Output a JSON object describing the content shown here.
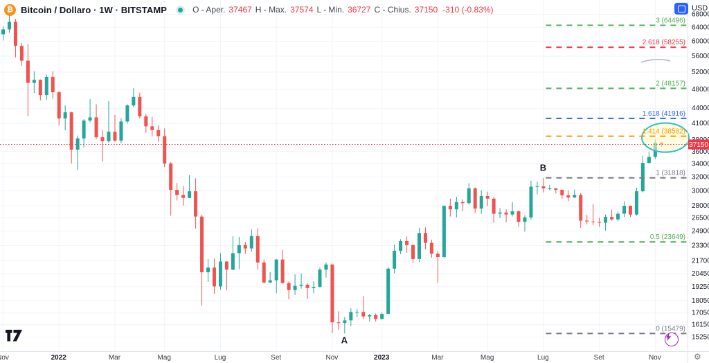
{
  "header": {
    "logo_glyph": "₿",
    "title": "Bitcoin / Dollaro · 1W · BITSTAMP",
    "ohlc": {
      "open_label": "O - Aper.",
      "open": "37467",
      "high_label": "H - Max.",
      "high": "37574",
      "low_label": "L - Min.",
      "low": "36727",
      "close_label": "C - Chius.",
      "close": "37150",
      "change": "-310 (-0.83%)"
    }
  },
  "top_right": {
    "currency": "USD"
  },
  "icons": {
    "chevron_down": "▾",
    "gear": "⚙"
  },
  "colors": {
    "up": "#26a69a",
    "down": "#ef5350",
    "grid": "#f0f3fa",
    "axis_border": "#e0e3eb",
    "axis_text": "#131722",
    "price_badge": "#f23645",
    "last_price_line": "#f23645",
    "ellipse_stroke": "#2bbfc9",
    "ellipse_fill": "#fff9c4",
    "annotation_text": "#131722",
    "brush": "#b2b5be"
  },
  "chart_data": {
    "type": "candlestick",
    "title": "Bitcoin / Dollaro weekly candlestick chart with Fibonacci extension levels",
    "timeframe": "1W",
    "exchange": "BITSTAMP",
    "scale": "logarithmic",
    "y_axis": {
      "currency": "USD",
      "ticks": [
        68000,
        64000,
        60000,
        56000,
        52000,
        48000,
        44000,
        41000,
        38000,
        36000,
        34000,
        32000,
        30000,
        28000,
        26500,
        24900,
        23300,
        21700,
        20450,
        19250,
        18050,
        17050,
        16150,
        15250
      ]
    },
    "x_axis": {
      "ticks": [
        {
          "label": "Nov",
          "index": 0,
          "is_year": false
        },
        {
          "label": "2022",
          "index": 9,
          "is_year": true
        },
        {
          "label": "Mar",
          "index": 18,
          "is_year": false
        },
        {
          "label": "Mag",
          "index": 26,
          "is_year": false
        },
        {
          "label": "Lug",
          "index": 35,
          "is_year": false
        },
        {
          "label": "Set",
          "index": 44,
          "is_year": false
        },
        {
          "label": "Nov",
          "index": 53,
          "is_year": false
        },
        {
          "label": "2023",
          "index": 61,
          "is_year": true
        },
        {
          "label": "Mar",
          "index": 70,
          "is_year": false
        },
        {
          "label": "Mag",
          "index": 78,
          "is_year": false
        },
        {
          "label": "Lug",
          "index": 87,
          "is_year": false
        },
        {
          "label": "Set",
          "index": 96,
          "is_year": false
        },
        {
          "label": "Nov",
          "index": 105,
          "is_year": false
        }
      ]
    },
    "candles_ohlc": [
      [
        61850,
        64270,
        60100,
        63290
      ],
      [
        63290,
        69000,
        62280,
        65520
      ],
      [
        65520,
        66400,
        55600,
        58620
      ],
      [
        58620,
        59450,
        53500,
        54750
      ],
      [
        54750,
        59100,
        42330,
        49400
      ],
      [
        49400,
        52100,
        47100,
        50100
      ],
      [
        50100,
        50200,
        45550,
        46700
      ],
      [
        46700,
        51375,
        45650,
        50800
      ],
      [
        50800,
        52100,
        45900,
        47300
      ],
      [
        47300,
        47600,
        40550,
        41900
      ],
      [
        41900,
        44500,
        39650,
        43100
      ],
      [
        43100,
        43200,
        34000,
        36250
      ],
      [
        36250,
        38700,
        32950,
        38200
      ],
      [
        38200,
        41750,
        36650,
        41500
      ],
      [
        41500,
        45850,
        41150,
        42100
      ],
      [
        42100,
        44750,
        38050,
        38400
      ],
      [
        38400,
        39700,
        34300,
        37700
      ],
      [
        37700,
        45400,
        37450,
        39400
      ],
      [
        39400,
        42600,
        37600,
        37800
      ],
      [
        37800,
        41950,
        37350,
        41300
      ],
      [
        41300,
        44750,
        40900,
        44500
      ],
      [
        44500,
        48200,
        44200,
        46300
      ],
      [
        46300,
        47200,
        41900,
        42300
      ],
      [
        42300,
        42800,
        39200,
        40400
      ],
      [
        40400,
        42200,
        38550,
        39700
      ],
      [
        39700,
        40600,
        37600,
        38600
      ],
      [
        38600,
        40000,
        33450,
        34000
      ],
      [
        34000,
        34250,
        26700,
        30100
      ],
      [
        30100,
        31050,
        28650,
        29400
      ],
      [
        29400,
        30650,
        28000,
        29000
      ],
      [
        29000,
        32200,
        28950,
        29900
      ],
      [
        29900,
        31750,
        25150,
        26600
      ],
      [
        26600,
        26800,
        17600,
        20550
      ],
      [
        20550,
        21850,
        19650,
        21000
      ],
      [
        21000,
        21900,
        18600,
        19250
      ],
      [
        19250,
        22450,
        18950,
        21600
      ],
      [
        21600,
        21650,
        18900,
        20800
      ],
      [
        20800,
        24300,
        20750,
        22450
      ],
      [
        22450,
        24200,
        20850,
        23300
      ],
      [
        23300,
        23650,
        22400,
        22950
      ],
      [
        22950,
        25050,
        22600,
        24300
      ],
      [
        24300,
        25200,
        20800,
        21500
      ],
      [
        21500,
        21800,
        19500,
        19600
      ],
      [
        19600,
        20550,
        19550,
        19800
      ],
      [
        19800,
        21850,
        18650,
        21800
      ],
      [
        21800,
        22800,
        19500,
        19550
      ],
      [
        19550,
        19700,
        18125,
        18925
      ],
      [
        18925,
        20350,
        18500,
        19300
      ],
      [
        19300,
        20450,
        19050,
        19400
      ],
      [
        19400,
        19550,
        18150,
        19100
      ],
      [
        19100,
        19700,
        18650,
        19200
      ],
      [
        19200,
        21000,
        19150,
        20800
      ],
      [
        20800,
        21500,
        20050,
        21300
      ],
      [
        21300,
        21350,
        15500,
        16300
      ],
      [
        16300,
        17150,
        15750,
        16250
      ],
      [
        16250,
        16700,
        15479,
        16450
      ],
      [
        16450,
        17400,
        16000,
        17100
      ],
      [
        17100,
        17350,
        16700,
        17100
      ],
      [
        17100,
        18400,
        16550,
        16750
      ],
      [
        16750,
        16950,
        16350,
        16850
      ],
      [
        16850,
        16980,
        16350,
        16550
      ],
      [
        16550,
        17050,
        16500,
        16950
      ],
      [
        16950,
        21050,
        16930,
        20900
      ],
      [
        20900,
        23350,
        20450,
        22700
      ],
      [
        22700,
        23950,
        22350,
        23750
      ],
      [
        23750,
        24250,
        22500,
        23300
      ],
      [
        23300,
        23450,
        21450,
        21850
      ],
      [
        21850,
        25250,
        21550,
        24650
      ],
      [
        24650,
        25300,
        22850,
        23550
      ],
      [
        23550,
        23900,
        22000,
        22400
      ],
      [
        22400,
        22650,
        19550,
        22050
      ],
      [
        22050,
        28000,
        21950,
        27950
      ],
      [
        27950,
        28900,
        26600,
        27500
      ],
      [
        27500,
        29150,
        26500,
        28450
      ],
      [
        28450,
        28800,
        27250,
        28300
      ],
      [
        28300,
        31050,
        28100,
        30300
      ],
      [
        30300,
        30450,
        27050,
        27600
      ],
      [
        27600,
        30050,
        26950,
        29250
      ],
      [
        29250,
        29850,
        27950,
        28900
      ],
      [
        28900,
        29150,
        25850,
        26950
      ],
      [
        26950,
        27650,
        26400,
        27100
      ],
      [
        27100,
        27500,
        25900,
        26850
      ],
      [
        26850,
        28450,
        26600,
        27250
      ],
      [
        27250,
        27400,
        25350,
        25950
      ],
      [
        25950,
        26750,
        24800,
        26500
      ],
      [
        26500,
        31400,
        26250,
        30550
      ],
      [
        30550,
        31250,
        29500,
        30600
      ],
      [
        30600,
        31818,
        29750,
        30300
      ],
      [
        30300,
        30800,
        30050,
        30300
      ],
      [
        30300,
        30350,
        29600,
        30100
      ],
      [
        30100,
        30150,
        28900,
        29350
      ],
      [
        29350,
        30050,
        28550,
        29050
      ],
      [
        29050,
        30150,
        29000,
        29400
      ],
      [
        29400,
        29650,
        25250,
        26100
      ],
      [
        26100,
        26800,
        25650,
        26000
      ],
      [
        26000,
        28150,
        25550,
        25950
      ],
      [
        25950,
        26450,
        25350,
        25850
      ],
      [
        25850,
        26850,
        24900,
        26550
      ],
      [
        26550,
        27450,
        26100,
        26250
      ],
      [
        26250,
        27250,
        26000,
        26950
      ],
      [
        26950,
        28550,
        26550,
        27950
      ],
      [
        27950,
        27990,
        26550,
        26850
      ],
      [
        26850,
        30400,
        26700,
        29900
      ],
      [
        29900,
        35250,
        29750,
        34100
      ],
      [
        34100,
        35950,
        34000,
        35050
      ],
      [
        35050,
        38000,
        34750,
        37460
      ],
      [
        37467,
        37574,
        36727,
        37150
      ]
    ],
    "last_price": {
      "value": 37150,
      "direction": "down"
    },
    "fibonacci": {
      "point_a": {
        "label": "A",
        "index": 55,
        "price": 15479
      },
      "point_b": {
        "label": "B",
        "index": 87,
        "price": 31818
      },
      "levels": [
        {
          "ratio": "3",
          "price": 64496,
          "color": "#4caf50",
          "highlighted": false
        },
        {
          "ratio": "2.618",
          "price": 58255,
          "color": "#f23645",
          "highlighted": false
        },
        {
          "ratio": "2",
          "price": 48157,
          "color": "#4caf50",
          "highlighted": false
        },
        {
          "ratio": "1.618",
          "price": 41916,
          "color": "#2962ff",
          "highlighted": false
        },
        {
          "ratio": "1.414",
          "price": 38582,
          "color": "#ff9800",
          "highlighted": true
        },
        {
          "ratio": "1",
          "price": 31818,
          "color": "#787b86",
          "highlighted": false
        },
        {
          "ratio": "0.5",
          "price": 23649,
          "color": "#4caf50",
          "highlighted": false
        },
        {
          "ratio": "0",
          "price": 15479,
          "color": "#787b86",
          "highlighted": false
        }
      ]
    }
  }
}
